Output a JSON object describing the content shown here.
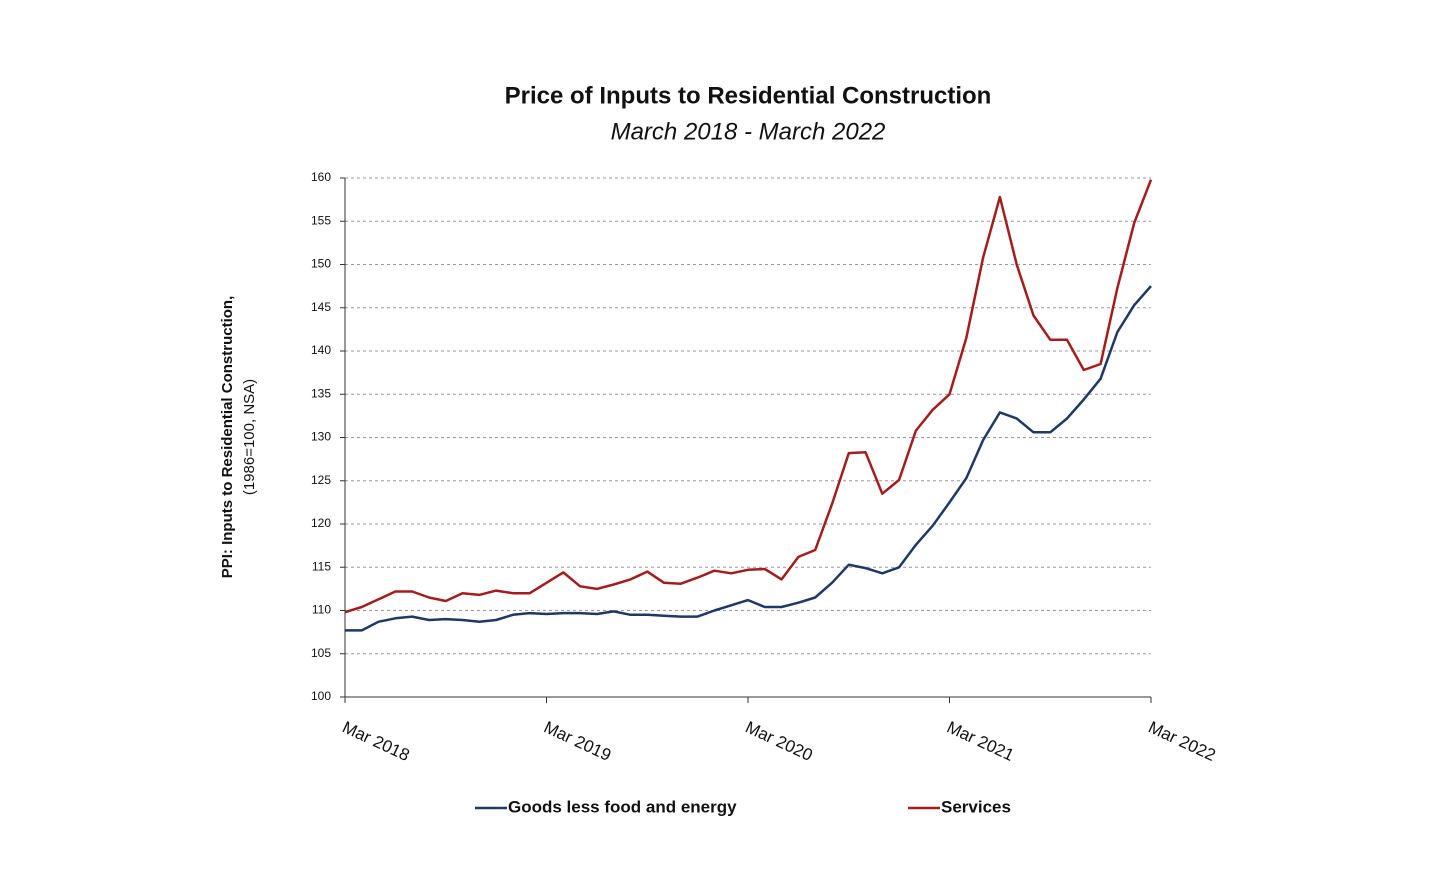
{
  "chart_data": {
    "type": "line",
    "title": "Price of Inputs to Residential Construction",
    "subtitle": "March 2018 - March 2022",
    "y_label": [
      "PPI: Inputs to Residential Construction,",
      "(1986=100, NSA)"
    ],
    "categories": [
      "Mar 2018",
      null,
      null,
      null,
      null,
      null,
      null,
      null,
      null,
      null,
      null,
      null,
      "Mar 2019",
      null,
      null,
      null,
      null,
      null,
      null,
      null,
      null,
      null,
      null,
      null,
      "Mar 2020",
      null,
      null,
      null,
      null,
      null,
      null,
      null,
      null,
      null,
      null,
      null,
      "Mar 2021",
      null,
      null,
      null,
      null,
      null,
      null,
      null,
      null,
      null,
      null,
      null,
      "Mar 2022"
    ],
    "series": [
      {
        "name": "Goods less food and energy",
        "color": "#1f3864",
        "values": [
          107.7,
          107.7,
          108.7,
          109.1,
          109.3,
          108.9,
          109.0,
          108.9,
          108.7,
          108.9,
          109.5,
          109.7,
          109.6,
          109.7,
          109.7,
          109.6,
          109.9,
          109.5,
          109.5,
          109.4,
          109.3,
          109.3,
          110.0,
          110.6,
          111.2,
          110.4,
          110.4,
          110.9,
          111.5,
          113.2,
          115.3,
          114.9,
          114.3,
          115.0,
          117.6,
          119.8,
          122.5,
          125.3,
          129.7,
          132.9,
          132.2,
          130.6,
          130.6,
          132.2,
          134.4,
          136.8,
          142.2,
          145.3,
          147.5
        ]
      },
      {
        "name": "Services",
        "color": "#a51c1c",
        "values": [
          109.8,
          110.4,
          111.3,
          112.2,
          112.2,
          111.5,
          111.1,
          112.0,
          111.8,
          112.3,
          112.0,
          112.0,
          113.2,
          114.4,
          112.8,
          112.5,
          113.0,
          113.6,
          114.5,
          113.2,
          113.1,
          113.8,
          114.6,
          114.3,
          114.7,
          114.8,
          113.6,
          116.2,
          117.0,
          122.3,
          128.2,
          128.3,
          123.5,
          125.1,
          130.8,
          133.2,
          135.0,
          141.5,
          150.8,
          157.8,
          150.0,
          144.1,
          141.3,
          141.3,
          137.8,
          138.5,
          147.3,
          154.8,
          159.8
        ]
      }
    ],
    "ylim": [
      100,
      160
    ],
    "yticks": [
      100,
      105,
      110,
      115,
      120,
      125,
      130,
      135,
      140,
      145,
      150,
      155,
      160
    ],
    "grid": true,
    "legend": "bottom"
  }
}
